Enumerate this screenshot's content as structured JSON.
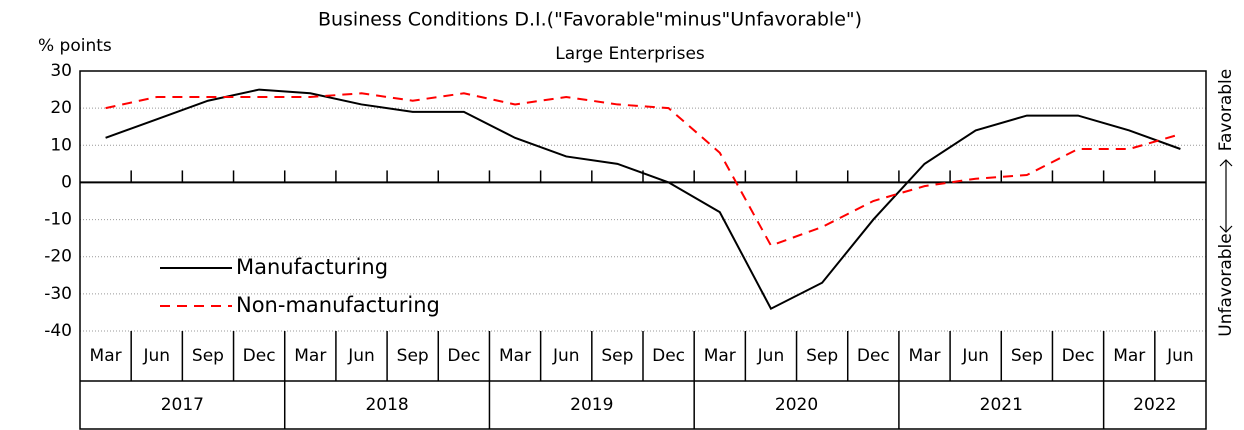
{
  "chart_data": {
    "type": "line",
    "title": "Business Conditions D.I.(\"Favorable\"minus\"Unfavorable\")",
    "subtitle": "Large Enterprises",
    "y_axis_label": "% points",
    "right_labels": [
      "Favorable",
      "Unfavorable"
    ],
    "categories": [
      "Mar",
      "Jun",
      "Sep",
      "Dec",
      "Mar",
      "Jun",
      "Sep",
      "Dec",
      "Mar",
      "Jun",
      "Sep",
      "Dec",
      "Mar",
      "Jun",
      "Sep",
      "Dec",
      "Mar",
      "Jun",
      "Sep",
      "Dec",
      "Mar",
      "Jun"
    ],
    "years": [
      "2017",
      "2018",
      "2019",
      "2020",
      "2021",
      "2022"
    ],
    "series": [
      {
        "name": "Manufacturing",
        "color": "#000000",
        "dash": false,
        "values": [
          12,
          17,
          22,
          25,
          24,
          21,
          19,
          19,
          12,
          7,
          5,
          0,
          -8,
          -34,
          -27,
          -10,
          5,
          14,
          18,
          18,
          14,
          9
        ]
      },
      {
        "name": "Non-manufacturing",
        "color": "#ff0000",
        "dash": true,
        "values": [
          20,
          23,
          23,
          23,
          23,
          24,
          22,
          24,
          21,
          23,
          21,
          20,
          8,
          -17,
          -12,
          -5,
          -1,
          1,
          2,
          9,
          9,
          13
        ]
      }
    ],
    "ylim": [
      -40,
      30
    ],
    "yticks": [
      -40,
      -30,
      -20,
      -10,
      0,
      10,
      20,
      30
    ],
    "grid": true
  }
}
